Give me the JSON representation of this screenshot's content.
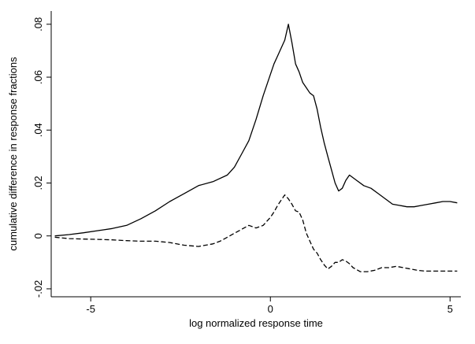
{
  "chart_data": {
    "type": "line",
    "title": "",
    "xlabel": "log normalized response time",
    "ylabel": "cumulative difference in response fractions",
    "xlim": [
      -6.1,
      5.3
    ],
    "ylim": [
      -0.023,
      0.085
    ],
    "xticks": [
      -5,
      0,
      5
    ],
    "xtick_labels": [
      "-5",
      "0",
      "5"
    ],
    "yticks": [
      -0.02,
      0,
      0.02,
      0.04,
      0.06,
      0.08
    ],
    "ytick_labels": [
      "-.02",
      "0",
      ".02",
      ".04",
      ".06",
      ".08"
    ],
    "grid": false,
    "legend": "none",
    "series": [
      {
        "style": "solid",
        "color": "#000000",
        "x": [
          -6.0,
          -5.6,
          -5.2,
          -4.8,
          -4.4,
          -4.0,
          -3.6,
          -3.2,
          -2.8,
          -2.4,
          -2.0,
          -1.6,
          -1.2,
          -1.0,
          -0.8,
          -0.6,
          -0.4,
          -0.2,
          0.0,
          0.1,
          0.2,
          0.3,
          0.4,
          0.5,
          0.6,
          0.7,
          0.8,
          0.9,
          1.0,
          1.1,
          1.2,
          1.3,
          1.4,
          1.5,
          1.6,
          1.7,
          1.8,
          1.9,
          2.0,
          2.1,
          2.2,
          2.4,
          2.6,
          2.8,
          3.0,
          3.2,
          3.4,
          3.6,
          3.8,
          4.0,
          4.2,
          4.4,
          4.6,
          4.8,
          5.0,
          5.2
        ],
        "y": [
          0.0,
          0.0005,
          0.0012,
          0.002,
          0.0028,
          0.004,
          0.0065,
          0.0095,
          0.013,
          0.016,
          0.019,
          0.0205,
          0.023,
          0.026,
          0.031,
          0.036,
          0.044,
          0.053,
          0.061,
          0.065,
          0.068,
          0.071,
          0.074,
          0.08,
          0.073,
          0.065,
          0.062,
          0.058,
          0.056,
          0.054,
          0.053,
          0.048,
          0.041,
          0.035,
          0.03,
          0.025,
          0.02,
          0.017,
          0.018,
          0.021,
          0.023,
          0.021,
          0.019,
          0.018,
          0.016,
          0.014,
          0.012,
          0.0115,
          0.011,
          0.011,
          0.0115,
          0.012,
          0.0125,
          0.013,
          0.013,
          0.0125
        ]
      },
      {
        "style": "dashed",
        "color": "#000000",
        "x": [
          -6.0,
          -5.6,
          -5.2,
          -4.8,
          -4.4,
          -4.0,
          -3.6,
          -3.2,
          -2.8,
          -2.4,
          -2.0,
          -1.6,
          -1.4,
          -1.2,
          -1.0,
          -0.8,
          -0.6,
          -0.4,
          -0.2,
          0.0,
          0.1,
          0.2,
          0.3,
          0.4,
          0.5,
          0.6,
          0.7,
          0.8,
          0.9,
          1.0,
          1.1,
          1.2,
          1.3,
          1.4,
          1.5,
          1.6,
          1.7,
          1.8,
          1.9,
          2.0,
          2.1,
          2.2,
          2.3,
          2.5,
          2.7,
          2.9,
          3.1,
          3.3,
          3.5,
          3.7,
          3.9,
          4.1,
          4.3,
          4.5,
          4.7,
          4.9,
          5.1,
          5.2
        ],
        "y": [
          -0.0005,
          -0.001,
          -0.0012,
          -0.0013,
          -0.0015,
          -0.0018,
          -0.002,
          -0.002,
          -0.0025,
          -0.0035,
          -0.004,
          -0.003,
          -0.002,
          -0.0005,
          0.001,
          0.0025,
          0.004,
          0.003,
          0.004,
          0.007,
          0.009,
          0.0115,
          0.0135,
          0.0155,
          0.014,
          0.012,
          0.0095,
          0.009,
          0.006,
          0.001,
          -0.002,
          -0.005,
          -0.0065,
          -0.009,
          -0.011,
          -0.0125,
          -0.0115,
          -0.01,
          -0.01,
          -0.009,
          -0.0095,
          -0.0105,
          -0.012,
          -0.0135,
          -0.0135,
          -0.013,
          -0.012,
          -0.012,
          -0.0115,
          -0.012,
          -0.0125,
          -0.013,
          -0.0133,
          -0.0133,
          -0.0133,
          -0.0133,
          -0.0133,
          -0.0133
        ]
      }
    ]
  }
}
